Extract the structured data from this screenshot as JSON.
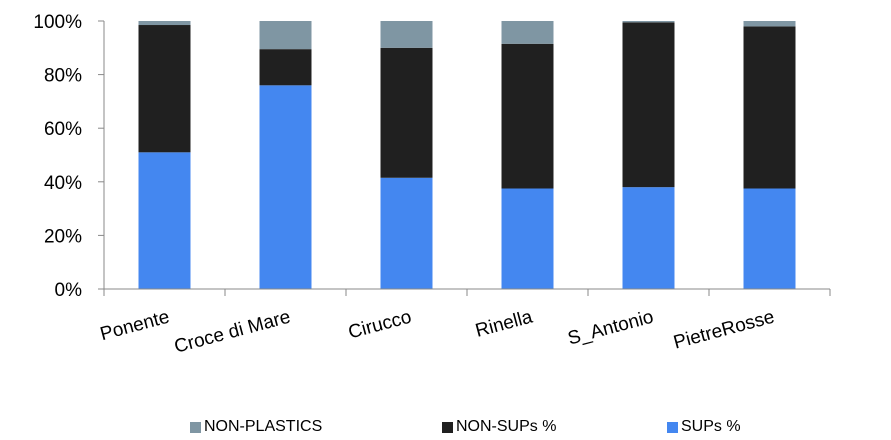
{
  "chart_data": {
    "type": "bar",
    "stacked": true,
    "categories": [
      "Ponente",
      "Croce di Mare",
      "Cirucco",
      "Rinella",
      "S_Antonio",
      "PietreRosse"
    ],
    "series": [
      {
        "name": "SUPs %",
        "color": "#4487F0",
        "values": [
          51,
          76,
          41.5,
          37.5,
          38,
          37.5
        ]
      },
      {
        "name": "NON-SUPs %",
        "color": "#202020",
        "values": [
          47.5,
          13.5,
          48.5,
          54,
          61.5,
          60.5
        ]
      },
      {
        "name": "NON-PLASTICS",
        "color": "#7F96A3",
        "values": [
          1.5,
          10.5,
          10,
          8.5,
          0.5,
          2
        ]
      }
    ],
    "legend_order": [
      "NON-PLASTICS",
      "NON-SUPs %",
      "SUPs %"
    ],
    "yticks": [
      "0%",
      "20%",
      "40%",
      "60%",
      "80%",
      "100%"
    ],
    "ylim": [
      0,
      100
    ],
    "legend_position": "bottom",
    "grid": false
  }
}
